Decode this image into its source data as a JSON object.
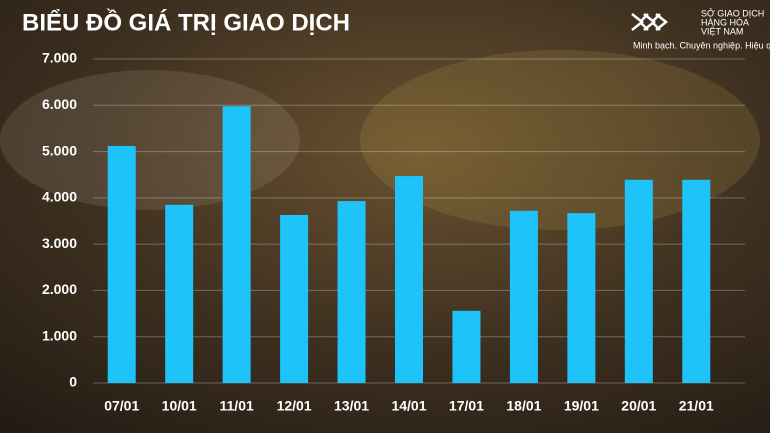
{
  "chart_data": {
    "type": "bar",
    "title": "BIỂU ĐỒ GIÁ TRỊ GIAO DỊCH",
    "brand": [
      "SỞ GIAO DỊCH",
      "HÀNG HÓA",
      "VIỆT NAM"
    ],
    "slogan": "Minh bạch. Chuyên nghiệp. Hiệu quả",
    "categories": [
      "07/01",
      "10/01",
      "11/01",
      "12/01",
      "13/01",
      "14/01",
      "17/01",
      "18/01",
      "19/01",
      "20/01",
      "21/01"
    ],
    "values": [
      5120,
      3850,
      5980,
      3630,
      3930,
      4470,
      1560,
      3720,
      3670,
      4390,
      4390
    ],
    "color": "#1ec3fa",
    "ylim": [
      0,
      7000
    ],
    "yticks": [
      0,
      {
        "value": 1000,
        "label": "1.000"
      },
      {
        "value": 2000,
        "label": "2.000"
      },
      {
        "value": 3000,
        "label": "3.000"
      },
      {
        "value": 4000,
        "label": "4.000"
      },
      {
        "value": 5000,
        "label": "5.000"
      },
      {
        "value": 6000,
        "label": "6.000"
      },
      {
        "value": 7000,
        "label": "7.000"
      }
    ],
    "grid": true
  }
}
